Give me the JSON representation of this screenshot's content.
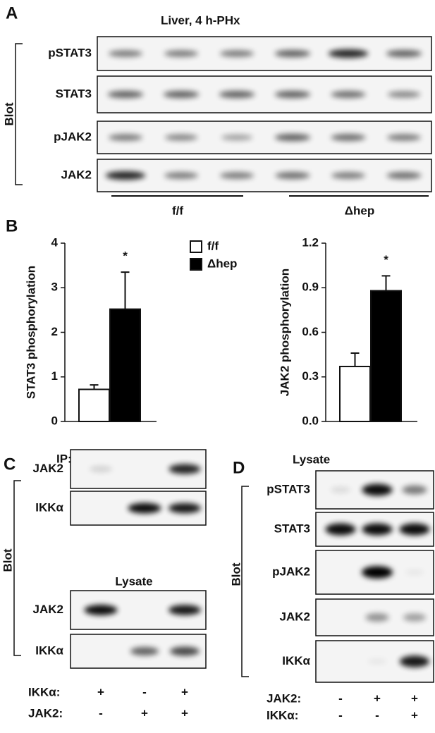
{
  "panel_a": {
    "label": "A",
    "title": "Liver, 4 h-PHx",
    "blot_label": "Blot",
    "rows": [
      "pSTAT3",
      "STAT3",
      "pJAK2",
      "JAK2"
    ],
    "groups": [
      "f/f",
      "Δhep"
    ]
  },
  "panel_b": {
    "label": "B"
  },
  "chart_data": [
    {
      "type": "bar",
      "y_label": "STAT3 phosphorylation",
      "annotation": "*",
      "categories": [
        null
      ],
      "series": [
        {
          "name": "f/f",
          "color": "#ffffff",
          "values": [
            0.72
          ],
          "errors": [
            0.1
          ]
        },
        {
          "name": "Δhep",
          "color": "#000000",
          "values": [
            2.52
          ],
          "errors": [
            0.83
          ]
        }
      ],
      "ylim": [
        0,
        4
      ],
      "yticks": [
        0,
        1,
        2,
        3,
        4
      ]
    },
    {
      "type": "bar",
      "y_label": "JAK2 phosphorylation",
      "annotation": "*",
      "categories": [
        null
      ],
      "series": [
        {
          "color": "#ffffff",
          "values": [
            0.37
          ],
          "errors": [
            0.09
          ]
        },
        {
          "color": "#000000",
          "values": [
            0.88
          ],
          "errors": [
            0.1
          ]
        }
      ],
      "ylim": [
        0,
        1.2
      ],
      "yticks": [
        {
          "value": 0,
          "label": "0.0"
        },
        0.3,
        0.6,
        0.9,
        1.2
      ]
    }
  ],
  "panel_c": {
    "label": "C",
    "ip_title": "IP: Flag-IKKα",
    "ip_rows": [
      "JAK2",
      "IKKα"
    ],
    "lysate_title": "Lysate",
    "lysate_rows": [
      "JAK2",
      "IKKα"
    ],
    "blot_label": "Blot",
    "conditions": [
      {
        "name": "IKKα:",
        "marks": [
          "+",
          "-",
          "+"
        ]
      },
      {
        "name": "JAK2:",
        "marks": [
          "-",
          "+",
          "+"
        ]
      }
    ]
  },
  "panel_d": {
    "label": "D",
    "title": "Lysate",
    "rows": [
      "pSTAT3",
      "STAT3",
      "pJAK2",
      "JAK2",
      "IKKα"
    ],
    "blot_label": "Blot",
    "conditions": [
      {
        "name": "JAK2:",
        "marks": [
          "-",
          "+",
          "+"
        ]
      },
      {
        "name": "IKKα:",
        "marks": [
          "-",
          "-",
          "+"
        ]
      }
    ]
  }
}
